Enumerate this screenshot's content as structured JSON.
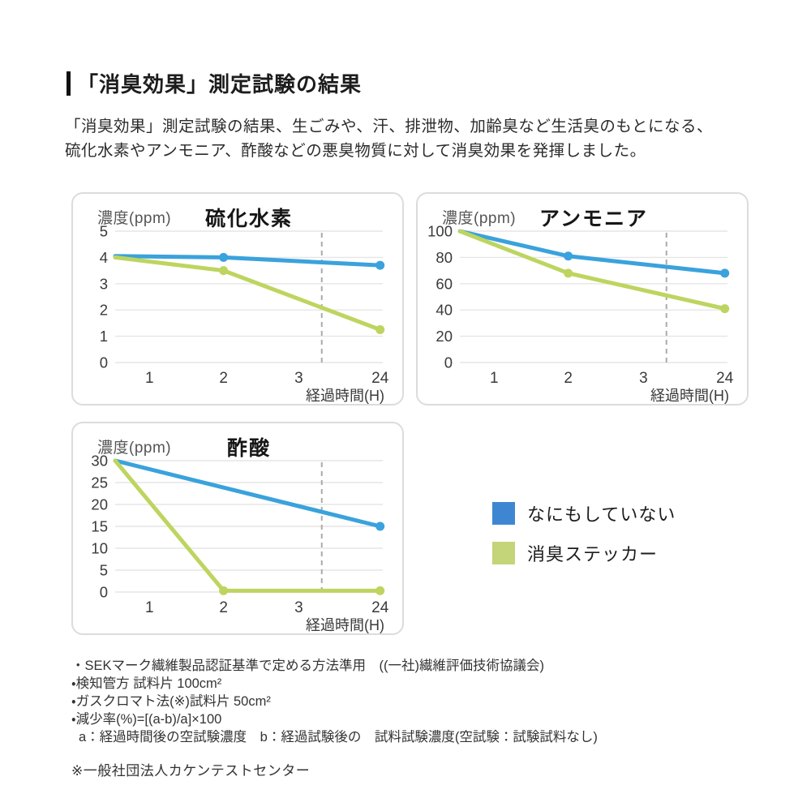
{
  "header": {
    "title": "「消臭効果」測定試験の結果",
    "description": "「消臭効果」測定試験の結果、生ごみや、汗、排泄物、加齢臭など生活臭のもとになる、\n硫化水素やアンモニア、酢酸などの悪臭物質に対して消臭効果を発揮しました。"
  },
  "colors": {
    "line_blue": "#3AA2DC",
    "line_green": "#BDD55F",
    "legend_blue": "#3F86D2",
    "legend_green": "#C4D478",
    "grid": "#E6E6E6",
    "dashed_break": "#ABABAB",
    "card_border": "#DCDCDC",
    "axis_text": "#3A3A3A"
  },
  "chart_data": [
    {
      "type": "line",
      "title": "硫化水素",
      "ylabel": "濃度(ppm)",
      "xlabel": "経過時間(H)",
      "x_ticks": [
        "1",
        "2",
        "3",
        "24"
      ],
      "y_ticks": [
        0,
        1,
        2,
        3,
        4,
        5
      ],
      "ylim": [
        0,
        5
      ],
      "grid": "horizontal",
      "axis_break": "dashed vertical line between 3 and 24",
      "series": [
        {
          "name": "なにもしていない",
          "color": "#3AA2DC",
          "points": [
            {
              "x": "start",
              "y": 4.05
            },
            {
              "x": "2",
              "y": 4.0,
              "dot": true
            },
            {
              "x": "24",
              "y": 3.7,
              "dot": true
            }
          ]
        },
        {
          "name": "消臭ステッカー",
          "color": "#BDD55F",
          "points": [
            {
              "x": "start",
              "y": 4.0
            },
            {
              "x": "2",
              "y": 3.5,
              "dot": true
            },
            {
              "x": "24",
              "y": 1.25,
              "dot": true
            }
          ]
        }
      ]
    },
    {
      "type": "line",
      "title": "アンモニア",
      "ylabel": "濃度(ppm)",
      "xlabel": "経過時間(H)",
      "x_ticks": [
        "1",
        "2",
        "3",
        "24"
      ],
      "y_ticks": [
        0,
        20,
        40,
        60,
        80,
        100
      ],
      "ylim": [
        0,
        100
      ],
      "grid": "horizontal",
      "axis_break": "dashed vertical line between 3 and 24",
      "series": [
        {
          "name": "なにもしていない",
          "color": "#3AA2DC",
          "points": [
            {
              "x": "start",
              "y": 100
            },
            {
              "x": "2",
              "y": 81,
              "dot": true
            },
            {
              "x": "24",
              "y": 68,
              "dot": true
            }
          ]
        },
        {
          "name": "消臭ステッカー",
          "color": "#BDD55F",
          "points": [
            {
              "x": "start",
              "y": 100
            },
            {
              "x": "2",
              "y": 68,
              "dot": true
            },
            {
              "x": "24",
              "y": 41,
              "dot": true
            }
          ]
        }
      ]
    },
    {
      "type": "line",
      "title": "酢酸",
      "ylabel": "濃度(ppm)",
      "xlabel": "経過時間(H)",
      "x_ticks": [
        "1",
        "2",
        "3",
        "24"
      ],
      "y_ticks": [
        0,
        5,
        10,
        15,
        20,
        25,
        30
      ],
      "ylim": [
        0,
        30
      ],
      "grid": "horizontal",
      "axis_break": "dashed vertical line between 3 and 24",
      "series": [
        {
          "name": "なにもしていない",
          "color": "#3AA2DC",
          "points": [
            {
              "x": "start",
              "y": 30
            },
            {
              "x": "24",
              "y": 15,
              "dot": true
            }
          ]
        },
        {
          "name": "消臭ステッカー",
          "color": "#BDD55F",
          "points": [
            {
              "x": "start",
              "y": 30
            },
            {
              "x": "2",
              "y": 0.3,
              "dot": true
            },
            {
              "x": "24",
              "y": 0.3,
              "dot": true
            }
          ]
        }
      ]
    }
  ],
  "legend": {
    "position": "middle-right",
    "items": [
      {
        "label": "なにもしていない",
        "color": "#3F86D2"
      },
      {
        "label": "消臭ステッカー",
        "color": "#C4D478"
      }
    ]
  },
  "footnotes": {
    "lines": [
      "・SEKマーク繊維製品認証基準で定める方法準用　((一社)繊維評価技術協議会)",
      "・検知管方 試料片 100cm²",
      "・ガスクロマト法(※)試料片 50cm²",
      "・減少率(%)=[(a-b)/a]×100"
    ],
    "sub_line": "a：経過時間後の空試験濃度　b：経過試験後の　試料試験濃度(空試験：試験試料なし)",
    "source": "※一般社団法人カケンテストセンター"
  }
}
